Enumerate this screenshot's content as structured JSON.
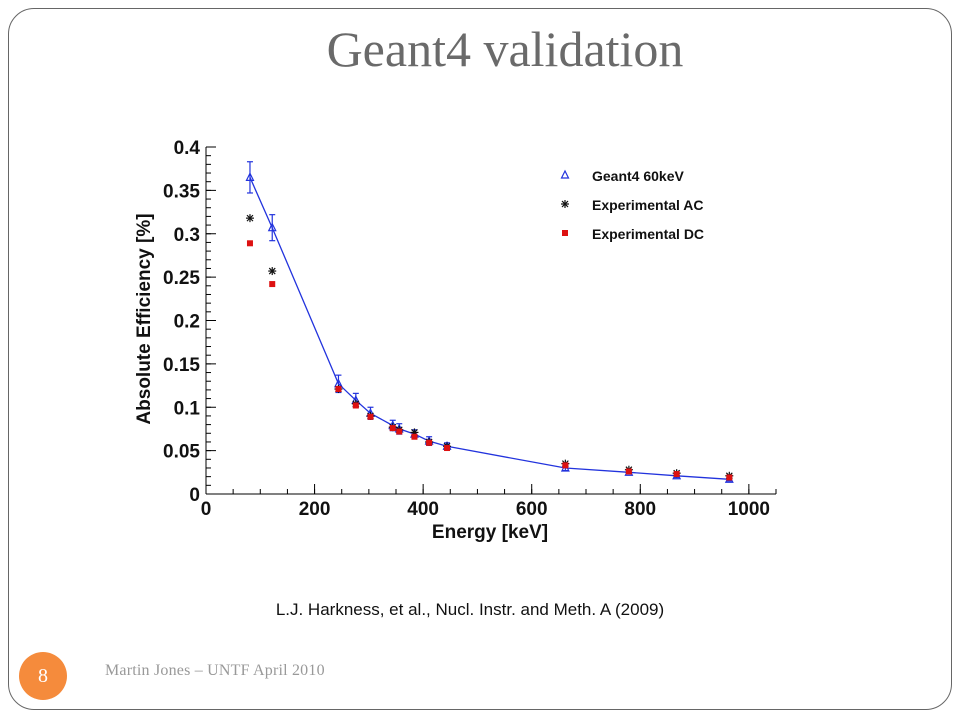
{
  "slide": {
    "title": "Geant4 validation",
    "caption": "L.J. Harkness, et al., Nucl. Instr. and Meth. A (2009)",
    "page_number": "8",
    "footer": "Martin Jones – UNTF April 2010",
    "accent_color": "#f58b3c"
  },
  "chart_data": {
    "type": "scatter",
    "xlabel": "Energy [keV]",
    "ylabel": "Absolute Efficiency [%]",
    "xlim": [
      0,
      1050
    ],
    "ylim": [
      0,
      0.4
    ],
    "x_ticks": [
      0,
      200,
      400,
      600,
      800,
      1000
    ],
    "y_ticks": [
      0,
      0.05,
      0.1,
      0.15,
      0.2,
      0.25,
      0.3,
      0.35,
      0.4
    ],
    "legend_position": "top-right",
    "grid": false,
    "series": [
      {
        "name": "Geant4 60keV",
        "marker": "triangle",
        "color": "#2233dd",
        "line": true,
        "x": [
          81,
          122,
          244,
          276,
          303,
          344,
          356,
          384,
          411,
          444,
          662,
          779,
          867,
          964
        ],
        "y": [
          0.365,
          0.307,
          0.127,
          0.108,
          0.093,
          0.079,
          0.075,
          0.069,
          0.061,
          0.055,
          0.03,
          0.025,
          0.021,
          0.017
        ],
        "err": [
          0.018,
          0.015,
          0.01,
          0.008,
          0.007,
          0.006,
          0.006,
          0.005,
          0.005,
          0.004,
          0.003,
          0.002,
          0.002,
          0.002
        ]
      },
      {
        "name": "Experimental AC",
        "marker": "star",
        "color": "#111111",
        "line": false,
        "x": [
          81,
          122,
          244,
          276,
          303,
          344,
          356,
          384,
          411,
          444,
          662,
          779,
          867,
          964
        ],
        "y": [
          0.318,
          0.257,
          0.121,
          0.104,
          0.09,
          0.077,
          0.074,
          0.071,
          0.06,
          0.055,
          0.035,
          0.028,
          0.024,
          0.021
        ]
      },
      {
        "name": "Experimental DC",
        "marker": "square",
        "color": "#dd1111",
        "line": false,
        "x": [
          81,
          122,
          244,
          276,
          303,
          344,
          356,
          384,
          411,
          444,
          662,
          779,
          867,
          964
        ],
        "y": [
          0.289,
          0.242,
          0.121,
          0.102,
          0.089,
          0.076,
          0.072,
          0.066,
          0.059,
          0.053,
          0.033,
          0.026,
          0.023,
          0.019
        ]
      }
    ]
  }
}
